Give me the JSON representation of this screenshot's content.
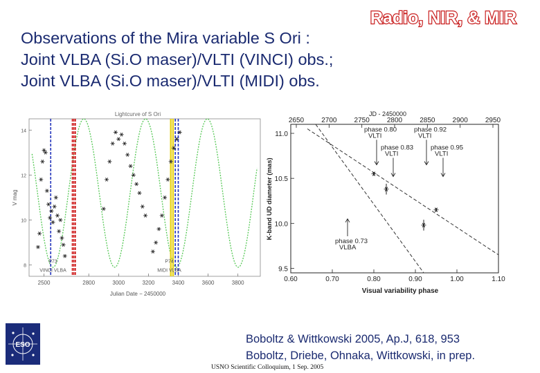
{
  "slide": {
    "tag": "Radio, NIR, & MIR",
    "title_lines": [
      "Observations of the Mira variable S Ori :",
      "Joint VLBA (Si.O maser)/VLTI (VINCI) obs.;",
      "Joint VLBA (Si.O maser)/VLTI (MIDI) obs."
    ],
    "references": [
      "Boboltz & Wittkowski 2005, Ap.J, 618, 953",
      "Boboltz, Driebe, Ohnaka, Wittkowski, in prep."
    ],
    "footer": "USNO Scientific Colloquium, 1 Sep. 2005",
    "logo_text": "ESO"
  },
  "chart_data": [
    {
      "type": "scatter",
      "title": "Lightcurve of S Ori",
      "xlabel": "Julian Date − 2450000",
      "ylabel": "V mag",
      "xlim": [
        2400,
        3950
      ],
      "ylim": [
        7.5,
        14.5
      ],
      "y_reversed": false,
      "xticks": [
        2500,
        2800,
        3000,
        3200,
        3400,
        3600,
        3800
      ],
      "yticks": [
        8,
        10,
        12,
        14
      ],
      "model_curve": {
        "period_days": 414,
        "mean_mag": 11.2,
        "amplitude_mag": 3.3,
        "peak_jd": 2560
      },
      "observations": [
        {
          "jd": 2460,
          "v": 8.8
        },
        {
          "jd": 2470,
          "v": 9.4
        },
        {
          "jd": 2480,
          "v": 11.8
        },
        {
          "jd": 2490,
          "v": 12.6
        },
        {
          "jd": 2500,
          "v": 13.1
        },
        {
          "jd": 2510,
          "v": 13.0
        },
        {
          "jd": 2520,
          "v": 11.3
        },
        {
          "jd": 2530,
          "v": 10.7
        },
        {
          "jd": 2540,
          "v": 10.1
        },
        {
          "jd": 2550,
          "v": 10.4
        },
        {
          "jd": 2560,
          "v": 9.9
        },
        {
          "jd": 2570,
          "v": 10.6
        },
        {
          "jd": 2580,
          "v": 11.0
        },
        {
          "jd": 2590,
          "v": 10.2
        },
        {
          "jd": 2600,
          "v": 9.5
        },
        {
          "jd": 2610,
          "v": 10.0
        },
        {
          "jd": 2620,
          "v": 9.2
        },
        {
          "jd": 2630,
          "v": 8.9
        },
        {
          "jd": 2640,
          "v": 8.4
        },
        {
          "jd": 2900,
          "v": 10.5
        },
        {
          "jd": 2920,
          "v": 11.8
        },
        {
          "jd": 2940,
          "v": 12.6
        },
        {
          "jd": 2960,
          "v": 13.4
        },
        {
          "jd": 2980,
          "v": 13.9
        },
        {
          "jd": 3000,
          "v": 13.6
        },
        {
          "jd": 3020,
          "v": 13.8
        },
        {
          "jd": 3040,
          "v": 13.4
        },
        {
          "jd": 3060,
          "v": 12.9
        },
        {
          "jd": 3080,
          "v": 12.4
        },
        {
          "jd": 3100,
          "v": 12.0
        },
        {
          "jd": 3120,
          "v": 11.6
        },
        {
          "jd": 3140,
          "v": 11.2
        },
        {
          "jd": 3160,
          "v": 10.6
        },
        {
          "jd": 3180,
          "v": 10.2
        },
        {
          "jd": 3230,
          "v": 8.6
        },
        {
          "jd": 3250,
          "v": 9.0
        },
        {
          "jd": 3270,
          "v": 9.6
        },
        {
          "jd": 3290,
          "v": 10.2
        },
        {
          "jd": 3310,
          "v": 11.0
        },
        {
          "jd": 3330,
          "v": 11.8
        },
        {
          "jd": 3350,
          "v": 12.6
        },
        {
          "jd": 3370,
          "v": 13.2
        },
        {
          "jd": 3390,
          "v": 13.6
        },
        {
          "jd": 3410,
          "v": 13.9
        }
      ],
      "vlines": [
        {
          "jd": 2545,
          "color": "#2233bb",
          "style": "dashed"
        },
        {
          "jd": 2690,
          "color": "#cc1111",
          "style": "dashed"
        },
        {
          "jd": 2700,
          "color": "#cc1111",
          "style": "dashed"
        },
        {
          "jd": 2710,
          "color": "#cc1111",
          "style": "dashed"
        },
        {
          "jd": 3350,
          "color": "#e8d31a",
          "style": "solid"
        },
        {
          "jd": 3365,
          "color": "#e8d31a",
          "style": "solid"
        },
        {
          "jd": 3380,
          "color": "#2233bb",
          "style": "dashed"
        },
        {
          "jd": 3400,
          "color": "#2233bb",
          "style": "dashed"
        }
      ],
      "annotations": [
        {
          "text": "P73",
          "jd": 2560,
          "v": 8.1
        },
        {
          "text": "VINCI VLBA",
          "jd": 2560,
          "v": 7.7
        },
        {
          "text": "P74",
          "jd": 3340,
          "v": 8.1
        },
        {
          "text": "MIDI VLBA",
          "jd": 3340,
          "v": 7.7
        }
      ]
    },
    {
      "type": "scatter",
      "xlabel": "Visual variability phase",
      "ylabel": "K-band UD diameter (mas)",
      "top_axis_label": "JD - 2450000",
      "xlim": [
        0.6,
        1.1
      ],
      "ylim": [
        9.45,
        11.1
      ],
      "xticks": [
        0.6,
        0.7,
        0.8,
        0.9,
        1.0,
        1.1
      ],
      "yticks": [
        9.5,
        10.0,
        10.5,
        11.0
      ],
      "top_ticks": [
        2650,
        2700,
        2750,
        2800,
        2850,
        2900,
        2950
      ],
      "points": [
        {
          "phase": 0.8,
          "diameter": 10.55,
          "err": 0.02
        },
        {
          "phase": 0.83,
          "diameter": 10.38,
          "err": 0.06
        },
        {
          "phase": 0.92,
          "diameter": 9.98,
          "err": 0.06
        },
        {
          "phase": 0.95,
          "diameter": 10.15,
          "err": 0.02
        }
      ],
      "fit_lines": [
        {
          "x": [
            0.64,
            1.1
          ],
          "y": [
            11.05,
            9.65
          ]
        },
        {
          "x": [
            0.66,
            0.92
          ],
          "y": [
            11.1,
            9.45
          ]
        }
      ],
      "phase_labels": [
        {
          "text": "phase 0.80",
          "sub": "VLTI",
          "phase": 0.8,
          "arrow_to": 10.65
        },
        {
          "text": "phase 0.83",
          "sub": "VLTI",
          "phase": 0.83,
          "arrow_to": 10.52
        },
        {
          "text": "phase 0.92",
          "sub": "VLTI",
          "phase": 0.92,
          "arrow_to": 10.65
        },
        {
          "text": "phase 0.95",
          "sub": "VLTI",
          "phase": 0.95,
          "arrow_to": 10.52
        },
        {
          "text": "phase 0.73",
          "sub": "VLBA",
          "phase": 0.73,
          "arrow_to": 9.6
        }
      ]
    }
  ]
}
